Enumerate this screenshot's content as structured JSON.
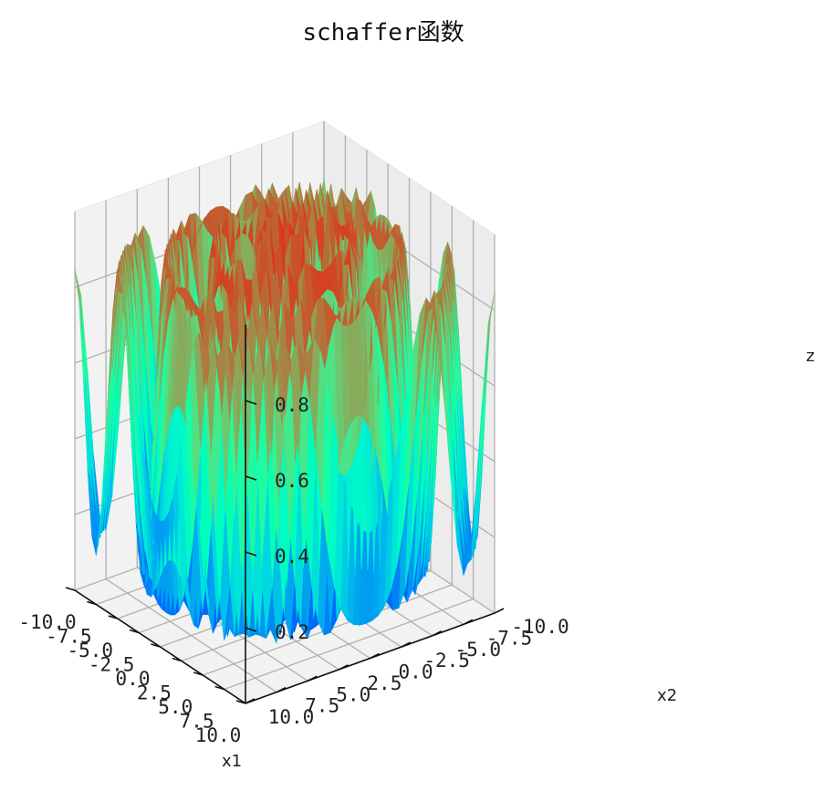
{
  "chart_data": {
    "type": "surface3d",
    "title": "schaffer函数",
    "function": "schaffer",
    "colormap": "rainbow",
    "xlabel": "x1",
    "ylabel": "x2",
    "zlabel": "z",
    "xlim": [
      -10.0,
      10.0
    ],
    "ylim": [
      -10.0,
      10.0
    ],
    "zlim": [
      0.0,
      1.0
    ],
    "x_ticks": [
      "-10.0",
      "-7.5",
      "-5.0",
      "-2.5",
      "0.0",
      "2.5",
      "5.0",
      "7.5",
      "10.0"
    ],
    "y_ticks": [
      "-10.0",
      "-7.5",
      "-5.0",
      "-2.5",
      "0.0",
      "2.5",
      "5.0",
      "7.5",
      "10.0"
    ],
    "z_ticks": [
      "0.2",
      "0.4",
      "0.6",
      "0.8"
    ],
    "grid": true
  }
}
